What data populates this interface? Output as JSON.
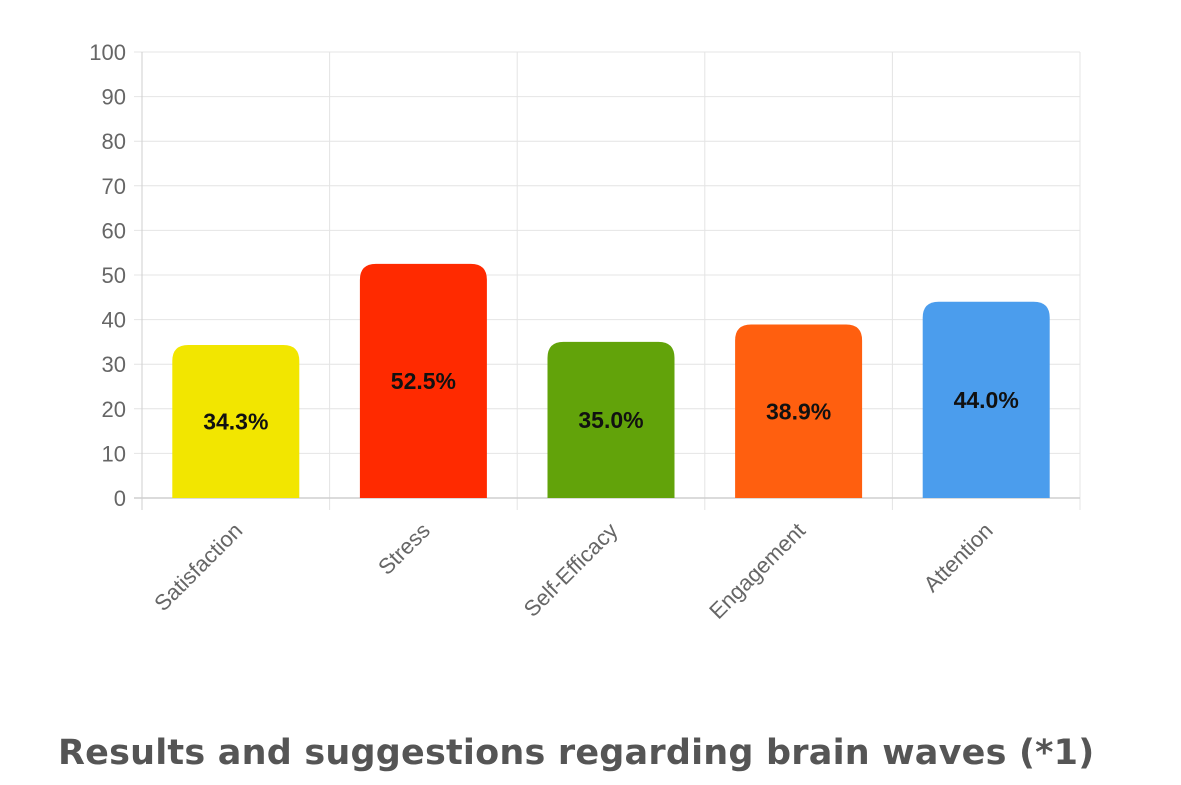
{
  "chart_data": {
    "type": "bar",
    "categories": [
      "Satisfaction",
      "Stress",
      "Self-Efficacy",
      "Engagement",
      "Attention"
    ],
    "values": [
      34.3,
      52.5,
      35.0,
      38.9,
      44.0
    ],
    "data_labels": [
      "34.3%",
      "52.5%",
      "35.0%",
      "38.9%",
      "44.0%"
    ],
    "colors": [
      "#f2e600",
      "#ff2a00",
      "#62a30a",
      "#ff5f0f",
      "#4b9ded"
    ],
    "ylim": [
      0,
      100
    ],
    "yticks": [
      "0",
      "10",
      "20",
      "30",
      "40",
      "50",
      "60",
      "70",
      "80",
      "90",
      "100"
    ],
    "grid": true,
    "legend": "none",
    "title": "",
    "xlabel": "",
    "ylabel": ""
  },
  "section": {
    "heading": "Results and suggestions regarding brain waves (*1)"
  }
}
